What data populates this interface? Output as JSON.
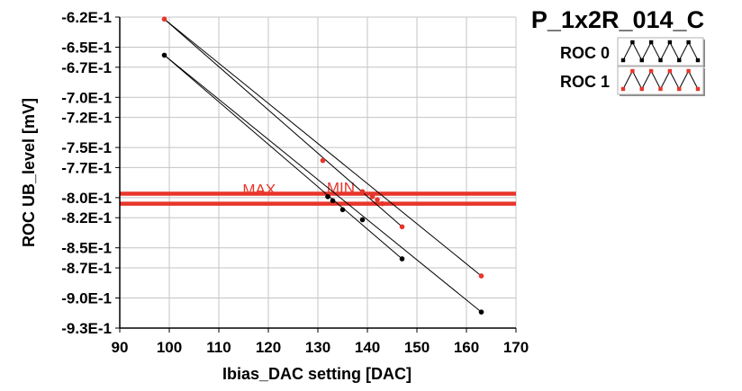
{
  "chart_data": {
    "type": "line",
    "title": "P_1x2R_014_C",
    "xlabel": "Ibias_DAC setting [DAC]",
    "ylabel": "ROC UB_level [mV]",
    "xlim": [
      90,
      170
    ],
    "ylim": [
      -0.93,
      -0.62
    ],
    "x_ticks": [
      90,
      100,
      110,
      120,
      130,
      140,
      150,
      160,
      170
    ],
    "y_ticks": [
      -0.62,
      -0.65,
      -0.67,
      -0.7,
      -0.72,
      -0.75,
      -0.77,
      -0.8,
      -0.82,
      -0.85,
      -0.87,
      -0.9,
      -0.93
    ],
    "y_tick_labels": [
      "-6.2E-1",
      "-6.5E-1",
      "-6.7E-1",
      "-7.0E-1",
      "-7.2E-1",
      "-7.5E-1",
      "-7.7E-1",
      "-8.0E-1",
      "-8.2E-1",
      "-8.5E-1",
      "-8.7E-1",
      "-9.0E-1",
      "-9.3E-1"
    ],
    "grid": true,
    "legend_position": "top-right",
    "reference_lines": [
      {
        "label": "MAX",
        "y": -0.796,
        "color": "#e8352a"
      },
      {
        "label": "MIN",
        "y": -0.806,
        "color": "#e8352a"
      }
    ],
    "series": [
      {
        "name": "ROC 0",
        "color": "#000000",
        "points": [
          {
            "x": 99,
            "y": -0.658
          },
          {
            "x": 132,
            "y": -0.799
          },
          {
            "x": 133,
            "y": -0.803
          },
          {
            "x": 135,
            "y": -0.812
          },
          {
            "x": 139,
            "y": -0.822
          },
          {
            "x": 147,
            "y": -0.861
          },
          {
            "x": 163,
            "y": -0.914
          }
        ],
        "line_pairs": [
          [
            0,
            5
          ],
          [
            0,
            6
          ]
        ]
      },
      {
        "name": "ROC 1",
        "color": "#e8352a",
        "points": [
          {
            "x": 99,
            "y": -0.622
          },
          {
            "x": 131,
            "y": -0.763
          },
          {
            "x": 139,
            "y": -0.794
          },
          {
            "x": 141,
            "y": -0.799
          },
          {
            "x": 142,
            "y": -0.802
          },
          {
            "x": 143,
            "y": -0.806
          },
          {
            "x": 147,
            "y": -0.829
          },
          {
            "x": 163,
            "y": -0.878
          }
        ],
        "line_pairs": [
          [
            0,
            6
          ],
          [
            0,
            7
          ]
        ]
      }
    ]
  }
}
